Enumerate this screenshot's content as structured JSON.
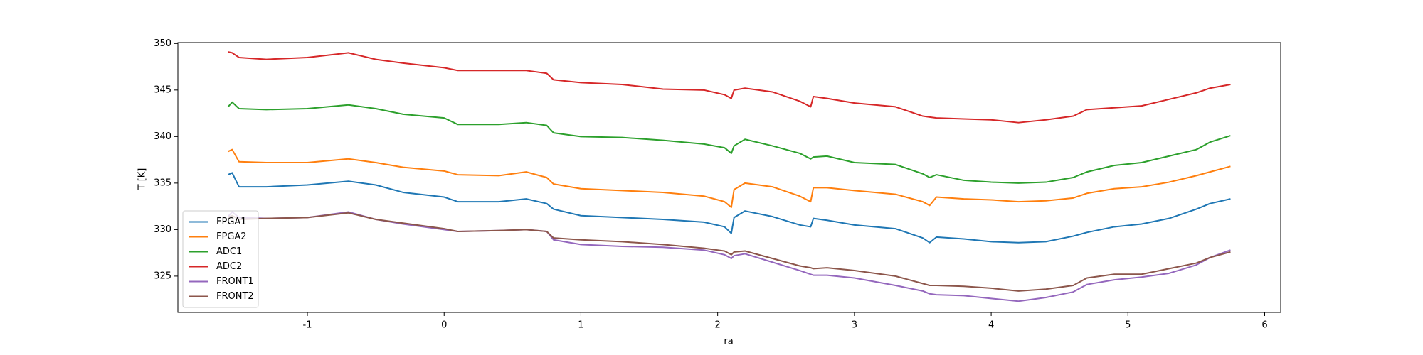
{
  "chart_data": {
    "type": "line",
    "xlabel": "ra",
    "ylabel": "T [K]",
    "x": [
      -1.58,
      -1.55,
      -1.5,
      -1.3,
      -1.0,
      -0.7,
      -0.5,
      -0.3,
      0,
      0.1,
      0.4,
      0.6,
      0.75,
      0.8,
      1.0,
      1.3,
      1.6,
      1.9,
      2.05,
      2.1,
      2.12,
      2.2,
      2.4,
      2.6,
      2.68,
      2.7,
      2.8,
      3.0,
      3.3,
      3.5,
      3.55,
      3.6,
      3.8,
      4.0,
      4.2,
      4.4,
      4.6,
      4.7,
      4.9,
      5.1,
      5.3,
      5.5,
      5.6,
      5.75
    ],
    "series": [
      {
        "name": "FPGA1",
        "color": "#1f77b4",
        "values": [
          335.9,
          336.1,
          334.6,
          334.6,
          334.8,
          335.2,
          334.8,
          334.0,
          333.5,
          333.0,
          333.0,
          333.3,
          332.8,
          332.2,
          331.5,
          331.3,
          331.1,
          330.8,
          330.3,
          329.6,
          331.3,
          332.0,
          331.4,
          330.5,
          330.3,
          331.2,
          331.0,
          330.5,
          330.1,
          329.1,
          328.6,
          329.2,
          329.0,
          328.7,
          328.6,
          328.7,
          329.3,
          329.7,
          330.3,
          330.6,
          331.2,
          332.2,
          332.8,
          333.3
        ]
      },
      {
        "name": "FPGA2",
        "color": "#ff7f0e",
        "values": [
          338.4,
          338.6,
          337.3,
          337.2,
          337.2,
          337.6,
          337.2,
          336.7,
          336.3,
          335.9,
          335.8,
          336.2,
          335.6,
          334.9,
          334.4,
          334.2,
          334.0,
          333.6,
          333.0,
          332.4,
          334.3,
          335.0,
          334.6,
          333.6,
          333.0,
          334.5,
          334.5,
          334.2,
          333.8,
          333.0,
          332.6,
          333.5,
          333.3,
          333.2,
          333.0,
          333.1,
          333.4,
          333.9,
          334.4,
          334.6,
          335.1,
          335.8,
          336.2,
          336.8
        ]
      },
      {
        "name": "ADC1",
        "color": "#2ca02c",
        "values": [
          343.2,
          343.7,
          343.0,
          342.9,
          343.0,
          343.4,
          343.0,
          342.4,
          342.0,
          341.3,
          341.3,
          341.5,
          341.2,
          340.4,
          340.0,
          339.9,
          339.6,
          339.2,
          338.8,
          338.2,
          339.0,
          339.7,
          339.0,
          338.2,
          337.6,
          337.8,
          337.9,
          337.2,
          337.0,
          336.0,
          335.6,
          335.9,
          335.3,
          335.1,
          335.0,
          335.1,
          335.6,
          336.2,
          336.9,
          337.2,
          337.9,
          338.6,
          339.4,
          340.1
        ]
      },
      {
        "name": "ADC2",
        "color": "#d62728",
        "values": [
          349.1,
          349.0,
          348.5,
          348.3,
          348.5,
          349.0,
          348.3,
          347.9,
          347.4,
          347.1,
          347.1,
          347.1,
          346.8,
          346.1,
          345.8,
          345.6,
          345.1,
          345.0,
          344.5,
          344.1,
          345.0,
          345.2,
          344.8,
          343.8,
          343.2,
          344.3,
          344.1,
          343.6,
          343.2,
          342.2,
          342.1,
          342.0,
          341.9,
          341.8,
          341.5,
          341.8,
          342.2,
          342.9,
          343.1,
          343.3,
          344.0,
          344.7,
          345.2,
          345.6
        ]
      },
      {
        "name": "FRONT1",
        "color": "#9467bd",
        "values": [
          331.4,
          331.9,
          331.3,
          331.2,
          331.3,
          331.9,
          331.1,
          330.6,
          330.0,
          329.8,
          329.9,
          330.0,
          329.8,
          328.9,
          328.4,
          328.2,
          328.1,
          327.8,
          327.3,
          326.9,
          327.2,
          327.4,
          326.5,
          325.6,
          325.2,
          325.1,
          325.1,
          324.8,
          324.0,
          323.4,
          323.1,
          323.0,
          322.9,
          322.6,
          322.3,
          322.7,
          323.3,
          324.1,
          324.6,
          324.9,
          325.3,
          326.2,
          327.0,
          327.8
        ]
      },
      {
        "name": "FRONT2",
        "color": "#8c564b",
        "values": [
          331.3,
          331.5,
          331.1,
          331.2,
          331.3,
          331.8,
          331.1,
          330.7,
          330.1,
          329.8,
          329.9,
          330.0,
          329.8,
          329.1,
          328.9,
          328.7,
          328.4,
          328.0,
          327.7,
          327.3,
          327.6,
          327.7,
          326.9,
          326.1,
          325.9,
          325.8,
          325.9,
          325.6,
          325.0,
          324.2,
          324.0,
          324.0,
          323.9,
          323.7,
          323.4,
          323.6,
          324.0,
          324.8,
          325.2,
          325.2,
          325.8,
          326.4,
          327.0,
          327.6
        ]
      }
    ],
    "xlim": [
      -1.947,
      6.117
    ],
    "ylim": [
      321.1,
      350.1
    ],
    "xticks": [
      -1,
      0,
      1,
      2,
      3,
      4,
      5,
      6
    ],
    "yticks": [
      325,
      330,
      335,
      340,
      345,
      350
    ],
    "legend": "lower left"
  }
}
